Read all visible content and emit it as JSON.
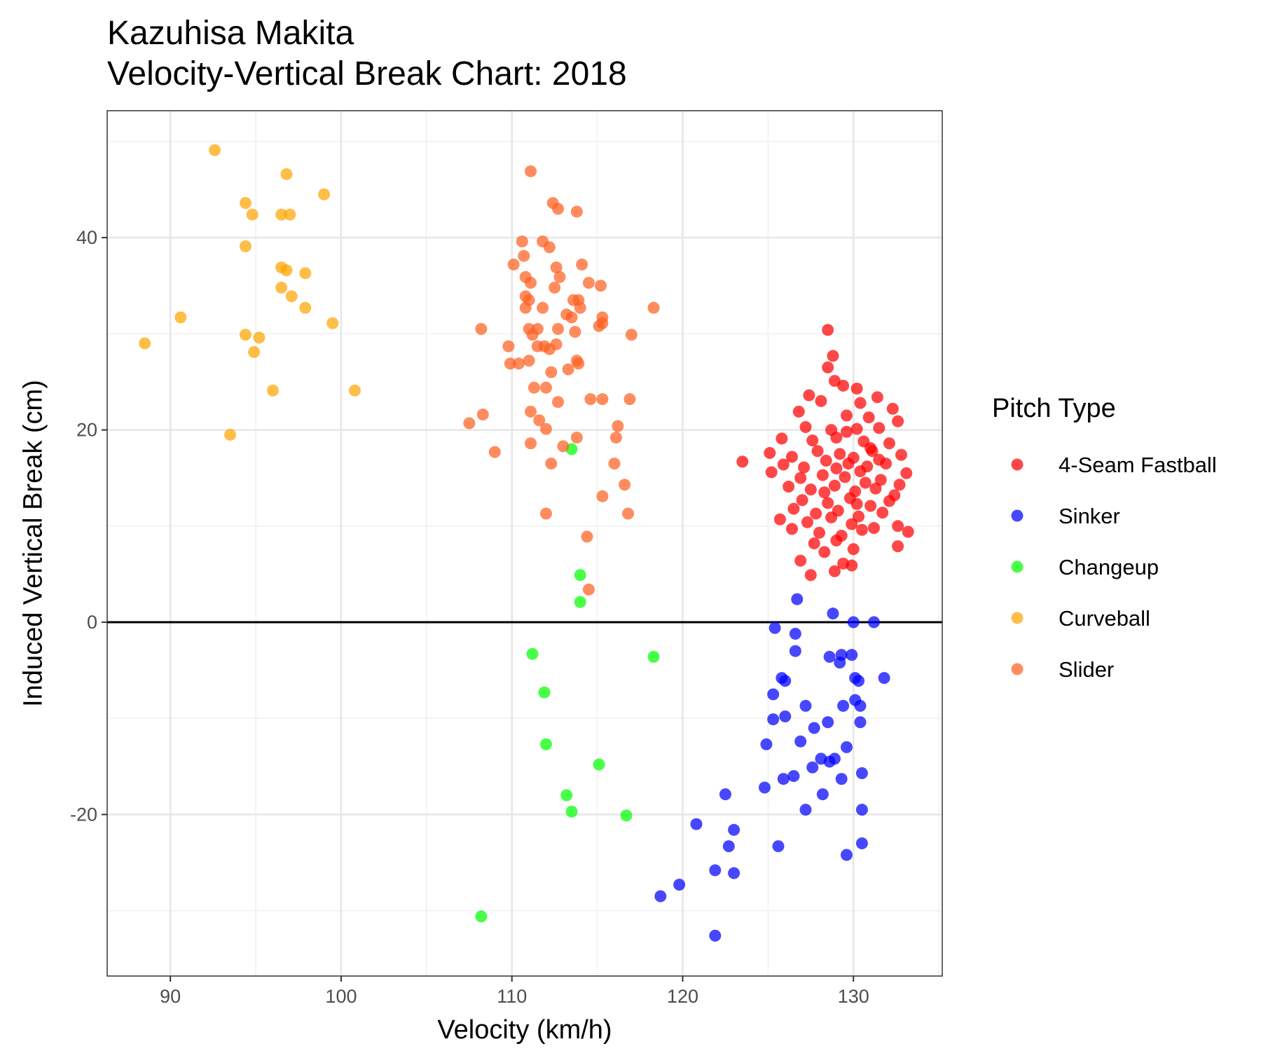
{
  "chart_data": {
    "type": "scatter",
    "title": "Kazuhisa Makita",
    "subtitle": "Velocity-Vertical Break Chart: 2018",
    "xlabel": "Velocity (km/h)",
    "ylabel": "Induced Vertical Break (cm)",
    "xlim": [
      86.3,
      135.2
    ],
    "ylim": [
      -36.8,
      53.2
    ],
    "xticks": [
      90,
      100,
      110,
      120,
      130
    ],
    "yticks": [
      -20,
      0,
      20,
      40
    ],
    "xtick_labels": [
      "90",
      "100",
      "110",
      "120",
      "130"
    ],
    "ytick_labels": [
      "-20",
      "0",
      "20",
      "40"
    ],
    "reference_line": {
      "y": 0
    },
    "grid": true,
    "legend": {
      "title": "Pitch Type",
      "position": "right"
    },
    "series": [
      {
        "name": "4-Seam Fastball",
        "color": "#ff0000",
        "points": [
          [
            128.5,
            30.4
          ],
          [
            128.8,
            27.7
          ],
          [
            128.5,
            26.5
          ],
          [
            128.9,
            25.1
          ],
          [
            129.4,
            24.6
          ],
          [
            130.2,
            24.3
          ],
          [
            131.4,
            23.4
          ],
          [
            127.4,
            23.6
          ],
          [
            128.1,
            23.0
          ],
          [
            130.4,
            22.8
          ],
          [
            132.3,
            22.2
          ],
          [
            126.8,
            21.9
          ],
          [
            129.6,
            21.5
          ],
          [
            130.9,
            21.3
          ],
          [
            132.6,
            20.9
          ],
          [
            127.2,
            20.3
          ],
          [
            128.7,
            20.0
          ],
          [
            130.2,
            20.1
          ],
          [
            131.5,
            20.2
          ],
          [
            125.8,
            19.1
          ],
          [
            127.6,
            18.9
          ],
          [
            129.0,
            19.2
          ],
          [
            130.6,
            18.8
          ],
          [
            132.1,
            18.6
          ],
          [
            125.1,
            17.6
          ],
          [
            126.4,
            17.2
          ],
          [
            127.9,
            17.8
          ],
          [
            129.2,
            17.5
          ],
          [
            130.0,
            17.1
          ],
          [
            131.1,
            17.8
          ],
          [
            132.8,
            17.4
          ],
          [
            123.5,
            16.7
          ],
          [
            125.9,
            16.4
          ],
          [
            127.1,
            16.1
          ],
          [
            128.4,
            16.8
          ],
          [
            129.7,
            16.5
          ],
          [
            130.8,
            16.2
          ],
          [
            131.9,
            16.5
          ],
          [
            133.1,
            15.5
          ],
          [
            125.2,
            15.6
          ],
          [
            126.9,
            15.0
          ],
          [
            128.2,
            15.3
          ],
          [
            129.5,
            15.1
          ],
          [
            130.4,
            15.7
          ],
          [
            131.6,
            14.8
          ],
          [
            132.7,
            14.3
          ],
          [
            126.2,
            14.1
          ],
          [
            127.5,
            13.8
          ],
          [
            128.9,
            14.2
          ],
          [
            130.1,
            13.6
          ],
          [
            131.3,
            13.9
          ],
          [
            132.4,
            13.2
          ],
          [
            127.0,
            12.7
          ],
          [
            128.5,
            12.4
          ],
          [
            129.8,
            12.9
          ],
          [
            131.0,
            12.1
          ],
          [
            132.1,
            12.6
          ],
          [
            126.5,
            11.8
          ],
          [
            127.8,
            11.3
          ],
          [
            129.1,
            11.6
          ],
          [
            130.3,
            11.0
          ],
          [
            131.7,
            11.4
          ],
          [
            125.7,
            10.7
          ],
          [
            127.3,
            10.4
          ],
          [
            128.7,
            10.9
          ],
          [
            129.9,
            10.2
          ],
          [
            131.2,
            9.8
          ],
          [
            132.6,
            10.0
          ],
          [
            133.2,
            9.4
          ],
          [
            126.4,
            9.7
          ],
          [
            128.0,
            9.3
          ],
          [
            129.3,
            9.0
          ],
          [
            130.5,
            9.6
          ],
          [
            127.7,
            8.2
          ],
          [
            129.0,
            8.5
          ],
          [
            130.0,
            7.6
          ],
          [
            132.6,
            7.9
          ],
          [
            128.3,
            7.3
          ],
          [
            126.9,
            6.4
          ],
          [
            129.4,
            6.1
          ],
          [
            129.9,
            5.9
          ],
          [
            127.5,
            4.9
          ],
          [
            128.9,
            5.3
          ],
          [
            131.0,
            18.1
          ],
          [
            130.7,
            14.5
          ],
          [
            129.6,
            19.8
          ],
          [
            128.3,
            13.5
          ],
          [
            131.5,
            16.9
          ],
          [
            130.2,
            12.3
          ],
          [
            129.0,
            16.0
          ]
        ]
      },
      {
        "name": "Sinker",
        "color": "#0000ff",
        "points": [
          [
            126.7,
            2.4
          ],
          [
            128.8,
            0.9
          ],
          [
            130.0,
            0.0
          ],
          [
            131.2,
            0.0
          ],
          [
            125.4,
            -0.6
          ],
          [
            126.6,
            -1.2
          ],
          [
            126.6,
            -3.0
          ],
          [
            128.6,
            -3.6
          ],
          [
            129.3,
            -3.4
          ],
          [
            129.9,
            -3.4
          ],
          [
            129.2,
            -4.2
          ],
          [
            125.8,
            -5.8
          ],
          [
            126.0,
            -6.1
          ],
          [
            130.1,
            -5.8
          ],
          [
            130.3,
            -6.1
          ],
          [
            131.8,
            -5.8
          ],
          [
            125.3,
            -7.5
          ],
          [
            130.1,
            -8.1
          ],
          [
            130.4,
            -8.7
          ],
          [
            129.4,
            -8.7
          ],
          [
            127.2,
            -8.7
          ],
          [
            126.0,
            -9.8
          ],
          [
            125.3,
            -10.1
          ],
          [
            128.5,
            -10.4
          ],
          [
            130.4,
            -10.4
          ],
          [
            127.7,
            -11.0
          ],
          [
            124.9,
            -12.7
          ],
          [
            126.9,
            -12.4
          ],
          [
            129.6,
            -13.0
          ],
          [
            128.1,
            -14.2
          ],
          [
            128.6,
            -14.5
          ],
          [
            128.9,
            -14.2
          ],
          [
            127.6,
            -15.1
          ],
          [
            130.5,
            -15.7
          ],
          [
            126.5,
            -16.0
          ],
          [
            125.9,
            -16.3
          ],
          [
            129.3,
            -16.3
          ],
          [
            124.8,
            -17.2
          ],
          [
            122.5,
            -17.9
          ],
          [
            128.2,
            -17.9
          ],
          [
            127.2,
            -19.5
          ],
          [
            130.5,
            -19.5
          ],
          [
            120.8,
            -21.0
          ],
          [
            123.0,
            -21.6
          ],
          [
            122.7,
            -23.3
          ],
          [
            125.6,
            -23.3
          ],
          [
            130.5,
            -23.0
          ],
          [
            129.6,
            -24.2
          ],
          [
            121.9,
            -25.8
          ],
          [
            123.0,
            -26.1
          ],
          [
            119.8,
            -27.3
          ],
          [
            118.7,
            -28.5
          ],
          [
            121.9,
            -32.6
          ]
        ]
      },
      {
        "name": "Changeup",
        "color": "#00ff00",
        "points": [
          [
            113.5,
            18.0
          ],
          [
            114.0,
            4.9
          ],
          [
            114.0,
            2.1
          ],
          [
            111.2,
            -3.3
          ],
          [
            118.3,
            -3.6
          ],
          [
            111.9,
            -7.3
          ],
          [
            112.0,
            -12.7
          ],
          [
            115.1,
            -14.8
          ],
          [
            113.2,
            -18.0
          ],
          [
            113.5,
            -19.7
          ],
          [
            116.7,
            -20.1
          ],
          [
            108.2,
            -30.6
          ]
        ]
      },
      {
        "name": "Curveball",
        "color": "#ffa500",
        "points": [
          [
            92.6,
            49.1
          ],
          [
            96.8,
            46.6
          ],
          [
            94.4,
            43.6
          ],
          [
            99.0,
            44.5
          ],
          [
            94.8,
            42.4
          ],
          [
            96.5,
            42.4
          ],
          [
            97.0,
            42.4
          ],
          [
            94.4,
            39.1
          ],
          [
            96.5,
            36.9
          ],
          [
            96.8,
            36.6
          ],
          [
            97.9,
            36.3
          ],
          [
            96.5,
            34.8
          ],
          [
            97.1,
            33.9
          ],
          [
            97.9,
            32.7
          ],
          [
            90.6,
            31.7
          ],
          [
            99.5,
            31.1
          ],
          [
            94.4,
            29.9
          ],
          [
            95.2,
            29.6
          ],
          [
            88.5,
            29.0
          ],
          [
            94.9,
            28.1
          ],
          [
            96.0,
            24.1
          ],
          [
            100.8,
            24.1
          ],
          [
            93.5,
            19.5
          ]
        ]
      },
      {
        "name": "Slider",
        "color": "#ff6020",
        "points": [
          [
            111.1,
            46.9
          ],
          [
            112.4,
            43.6
          ],
          [
            112.7,
            43.0
          ],
          [
            113.8,
            42.7
          ],
          [
            110.6,
            39.6
          ],
          [
            111.8,
            39.6
          ],
          [
            112.2,
            39.0
          ],
          [
            110.7,
            38.1
          ],
          [
            110.1,
            37.2
          ],
          [
            112.6,
            36.9
          ],
          [
            114.1,
            37.2
          ],
          [
            110.8,
            35.9
          ],
          [
            112.8,
            35.9
          ],
          [
            111.1,
            35.3
          ],
          [
            112.5,
            34.8
          ],
          [
            114.5,
            35.3
          ],
          [
            115.2,
            35.0
          ],
          [
            110.8,
            33.9
          ],
          [
            111.0,
            33.5
          ],
          [
            113.6,
            33.5
          ],
          [
            113.9,
            33.5
          ],
          [
            110.8,
            32.7
          ],
          [
            111.8,
            32.7
          ],
          [
            114.0,
            32.7
          ],
          [
            118.3,
            32.7
          ],
          [
            113.2,
            32.0
          ],
          [
            113.5,
            31.7
          ],
          [
            115.3,
            31.7
          ],
          [
            115.3,
            31.1
          ],
          [
            115.1,
            30.8
          ],
          [
            108.2,
            30.5
          ],
          [
            111.0,
            30.5
          ],
          [
            111.5,
            30.5
          ],
          [
            112.7,
            30.5
          ],
          [
            113.7,
            30.2
          ],
          [
            117.0,
            29.9
          ],
          [
            111.2,
            29.9
          ],
          [
            109.8,
            28.7
          ],
          [
            111.5,
            28.7
          ],
          [
            111.9,
            28.7
          ],
          [
            112.2,
            28.4
          ],
          [
            112.6,
            28.9
          ],
          [
            109.9,
            26.9
          ],
          [
            110.4,
            26.9
          ],
          [
            111.0,
            27.2
          ],
          [
            113.3,
            26.3
          ],
          [
            113.9,
            26.9
          ],
          [
            113.8,
            27.2
          ],
          [
            112.3,
            26.0
          ],
          [
            111.3,
            24.4
          ],
          [
            112.0,
            24.4
          ],
          [
            112.7,
            22.9
          ],
          [
            114.6,
            23.2
          ],
          [
            115.3,
            23.2
          ],
          [
            116.9,
            23.2
          ],
          [
            108.3,
            21.6
          ],
          [
            111.1,
            21.9
          ],
          [
            107.5,
            20.7
          ],
          [
            111.6,
            21.0
          ],
          [
            112.0,
            20.1
          ],
          [
            116.2,
            20.4
          ],
          [
            116.1,
            19.2
          ],
          [
            113.8,
            19.2
          ],
          [
            111.1,
            18.6
          ],
          [
            113.0,
            18.3
          ],
          [
            109.0,
            17.7
          ],
          [
            112.3,
            16.5
          ],
          [
            116.0,
            16.5
          ],
          [
            116.6,
            14.3
          ],
          [
            115.3,
            13.1
          ],
          [
            112.0,
            11.3
          ],
          [
            116.8,
            11.3
          ],
          [
            114.4,
            8.9
          ],
          [
            114.5,
            3.4
          ]
        ]
      }
    ]
  }
}
